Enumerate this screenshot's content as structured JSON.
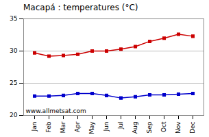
{
  "chart_data": {
    "type": "line",
    "title": "Macapá : temperatures (°C)",
    "categories": [
      "Jan",
      "Feb",
      "Mar",
      "Apr",
      "May",
      "Jun",
      "Jul",
      "Aug",
      "Sep",
      "Oct",
      "Nov",
      "Dec"
    ],
    "series": [
      {
        "color": "#cc0000",
        "values": [
          29.7,
          29.2,
          29.3,
          29.5,
          30.0,
          30.0,
          30.3,
          30.7,
          31.5,
          32.0,
          32.6,
          32.3
        ]
      },
      {
        "color": "#0000cc",
        "values": [
          23.0,
          23.0,
          23.1,
          23.4,
          23.4,
          23.1,
          22.7,
          22.9,
          23.2,
          23.2,
          23.3,
          23.4
        ]
      }
    ],
    "marker": "square",
    "ylim": [
      20,
      35
    ],
    "yticks": [
      20,
      25,
      30,
      35
    ],
    "grid": true,
    "annotations": [
      "www.allmetsat.com"
    ]
  }
}
